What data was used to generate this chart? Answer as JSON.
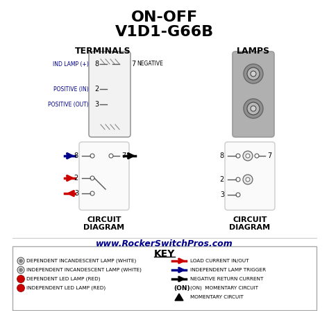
{
  "title_line1": "ON-OFF",
  "title_line2": "V1D1-G66B",
  "terminals_label": "TERMINALS",
  "lamps_label": "LAMPS",
  "website": "www.RockerSwitchPros.com",
  "key_title": "KEY",
  "terminal_labels_left": [
    "IND LAMP (+)",
    "POSITIVE (IN)",
    "POSITIVE (OUT)"
  ],
  "terminal_numbers_left": [
    "8",
    "2",
    "3"
  ],
  "terminal_number_right": "7",
  "terminal_label_right": "NEGATIVE",
  "bg_color": "#ffffff",
  "text_color": "#000000",
  "blue_color": "#00008B",
  "red_color": "#cc0000",
  "key_items_left": [
    "DEPENDENT INCANDESCENT LAMP (WHITE)",
    "INDEPENDENT INCANDESCENT LAMP (WHITE)",
    "DEPENDENT LED LAMP (RED)",
    "INDEPENDENT LED LAMP (RED)"
  ],
  "key_items_right": [
    "LOAD CURRENT IN/OUT",
    "INDEPENDENT LAMP TRIGGER",
    "NEGATIVE RETURN CURRENT",
    "(ON)  MOMENTARY CIRCUIT",
    "MOMENTARY CIRCUIT"
  ]
}
